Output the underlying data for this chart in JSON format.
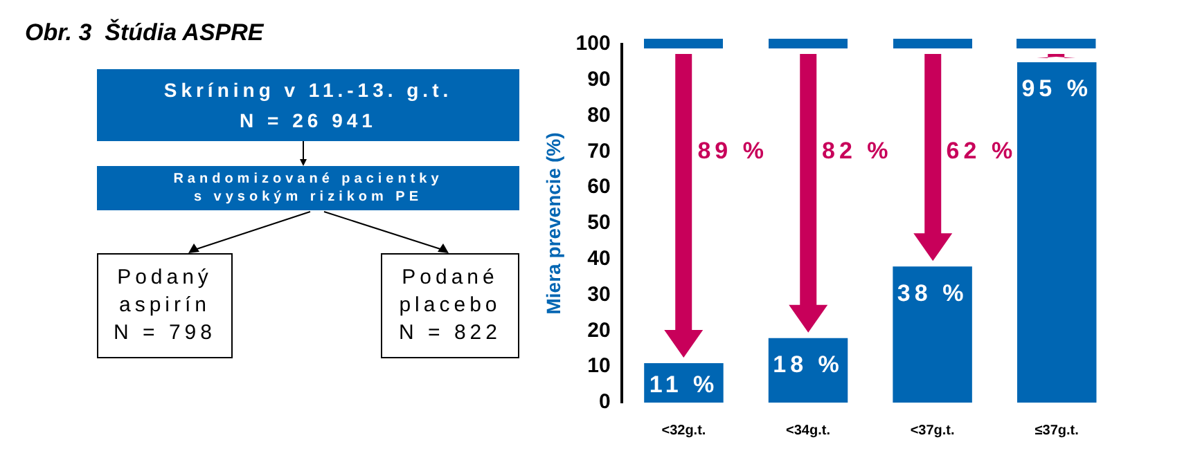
{
  "chart_data": {
    "type": "bar",
    "title": "Obr. 3  Štúdia ASPRE",
    "ylabel": "Miera prevencie (%)",
    "categories": [
      "<32g.t.",
      "<34g.t.",
      "<37g.t.",
      "≤37g.t."
    ],
    "values": [
      11,
      18,
      38,
      95
    ],
    "color": "#0066b3",
    "value_labels": [
      "11 %",
      "18 %",
      "38 %",
      "95 %"
    ],
    "ylim": [
      0,
      100
    ],
    "yticks": [
      0,
      10,
      20,
      30,
      40,
      50,
      60,
      70,
      80,
      90,
      100
    ],
    "grid": false,
    "legend": false,
    "annotations": [
      "Skríning v 11.-13. g.t.\nN = 26 941",
      "Randomizované pacientky\ns vysokým rizikom PE",
      "Podaný\naspirín\nN = 798",
      "Podané\nplacebo\nN = 822",
      "89 %",
      "82 %",
      "62 %"
    ]
  }
}
